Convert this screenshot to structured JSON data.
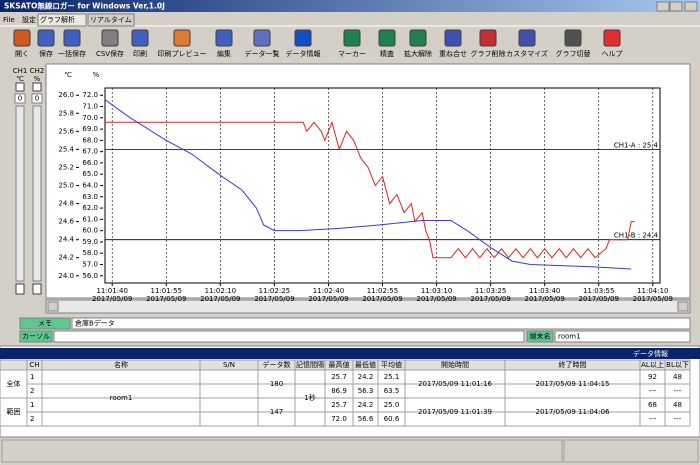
{
  "window": {
    "title": "SKSATO無線ロガー for Windows Ver,1.0J"
  },
  "menu": [
    "File",
    "設定",
    "グラフ解析",
    "リアルタイム"
  ],
  "toolbar": [
    "開く",
    "保存",
    "一括保存",
    "CSV保存",
    "印刷",
    "印刷プレビュー",
    "編集",
    "データ一覧",
    "データ情報",
    "マーカー",
    "精査",
    "拡大解除",
    "重ね合せ",
    "グラフ削除",
    "カスタマイズ",
    "グラフ切替",
    "ヘルプ"
  ],
  "left_panel": {
    "channels": [
      "CH1",
      "CH2"
    ],
    "units": [
      "℃",
      "%"
    ],
    "offsets": [
      "0",
      "0"
    ]
  },
  "chart_data": {
    "type": "line",
    "y_label": "℃",
    "y2_label": "%",
    "xlim": [
      "11:01:38",
      "11:04:12"
    ],
    "xticks": [
      "11:01:40",
      "11:01:55",
      "11:02:10",
      "11:02:25",
      "11:02:40",
      "11:02:55",
      "11:03:10",
      "11:03:25",
      "11:03:40",
      "11:03:55",
      "11:04:10"
    ],
    "xtick_dates": [
      "2017/05/09",
      "2017/05/09",
      "2017/05/09",
      "2017/05/09",
      "2017/05/09",
      "2017/05/09",
      "2017/05/09",
      "2017/05/09",
      "2017/05/09",
      "2017/05/09",
      "2017/05/09"
    ],
    "ylim": [
      23.92,
      26.08
    ],
    "yticks": [
      {
        "value": 24,
        "label": "24.0"
      },
      24.2,
      24.4,
      24.6,
      24.8,
      {
        "value": 25,
        "label": "25.0"
      },
      25.2,
      25.4,
      25.6,
      25.8,
      {
        "value": 26,
        "label": "26.0"
      }
    ],
    "y2lim": [
      55.36,
      72.64
    ],
    "y2ticks": [
      {
        "value": 56,
        "label": "56.0"
      },
      {
        "value": 57,
        "label": "57.0"
      },
      {
        "value": 58,
        "label": "58.0"
      },
      {
        "value": 59,
        "label": "59.0"
      },
      {
        "value": 60,
        "label": "60.0"
      },
      {
        "value": 61,
        "label": "61.0"
      },
      {
        "value": 62,
        "label": "62.0"
      },
      {
        "value": 63,
        "label": "63.0"
      },
      {
        "value": 64,
        "label": "64.0"
      },
      {
        "value": 65,
        "label": "65.0"
      },
      {
        "value": 66,
        "label": "66.0"
      },
      {
        "value": 67,
        "label": "67.0"
      },
      {
        "value": 68,
        "label": "68.0"
      },
      {
        "value": 69,
        "label": "69.0"
      },
      {
        "value": 70,
        "label": "70.0"
      },
      {
        "value": 71,
        "label": "71.0"
      },
      {
        "value": 72,
        "label": "72.0"
      }
    ],
    "grid": "x",
    "ref_lines": [
      {
        "label": "CH1-A : 25.4",
        "value": 25.4
      },
      {
        "label": "CH1-B : 24.4",
        "value": 24.4
      }
    ],
    "series": [
      {
        "color": "#e82020",
        "x": [
          "11:01:38",
          "11:02:33",
          "11:02:34",
          "11:02:36",
          "11:02:38",
          "11:02:39",
          "11:02:41",
          "11:02:43",
          "11:02:45",
          "11:02:47",
          "11:02:49",
          "11:02:51",
          "11:02:53",
          "11:02:55",
          "11:02:57",
          "11:02:59",
          "11:03:01",
          "11:03:03",
          "11:03:04",
          "11:03:06",
          "11:03:07",
          "11:03:08",
          "11:03:09",
          "11:03:14",
          "11:03:16",
          "11:03:18",
          "11:03:20",
          "11:03:22",
          "11:03:24",
          "11:03:26",
          "11:03:28",
          "11:03:30",
          "11:03:32",
          "11:03:34",
          "11:03:36",
          "11:03:38",
          "11:03:40",
          "11:03:42",
          "11:03:44",
          "11:03:46",
          "11:03:48",
          "11:03:50",
          "11:03:52",
          "11:03:54",
          "11:03:57",
          "11:03:58",
          "11:04:03",
          "11:04:04",
          "11:04:05"
        ],
        "values": [
          25.7,
          25.7,
          25.6,
          25.7,
          25.6,
          25.5,
          25.7,
          25.4,
          25.6,
          25.5,
          25.3,
          25.2,
          25.0,
          25.1,
          24.8,
          24.9,
          24.7,
          24.8,
          24.6,
          24.7,
          24.5,
          24.4,
          24.2,
          24.2,
          24.3,
          24.2,
          24.3,
          24.2,
          24.3,
          24.2,
          24.3,
          24.2,
          24.3,
          24.2,
          24.3,
          24.2,
          24.3,
          24.2,
          24.3,
          24.2,
          24.3,
          24.2,
          24.3,
          24.2,
          24.3,
          24.4,
          24.4,
          24.6,
          24.6
        ]
      },
      {
        "color": "#3838e0",
        "axis": "y2",
        "x": [
          "11:01:38",
          "11:01:45",
          "11:01:55",
          "11:02:02",
          "11:02:10",
          "11:02:16",
          "11:02:20",
          "11:02:22",
          "11:02:25",
          "11:02:32",
          "11:02:43",
          "11:02:54",
          "11:03:06",
          "11:03:14",
          "11:03:19",
          "11:03:25",
          "11:03:31",
          "11:03:36",
          "11:03:53",
          "11:04:04"
        ],
        "values": [
          71.6,
          70.0,
          68.0,
          66.8,
          64.9,
          63.6,
          62.0,
          60.5,
          60.0,
          60.0,
          60.2,
          60.5,
          60.9,
          60.9,
          59.9,
          58.5,
          57.3,
          57.0,
          56.8,
          56.6
        ]
      }
    ]
  },
  "memo": {
    "label": "メモ",
    "text": "倉庫Bデータ"
  },
  "cursor": {
    "label": "カーソル"
  },
  "terminal": {
    "label": "端末名",
    "value": "room1"
  },
  "table": {
    "title": "データ情報",
    "columns": [
      "CH",
      "名称",
      "S/N",
      "データ数",
      "記憶間隔",
      "最高値",
      "最低値",
      "平均値",
      "開始時間",
      "終了時間",
      "AL以上",
      "BL以下"
    ],
    "name": "room1",
    "interval": "1秒",
    "groups": [
      {
        "label": "全体",
        "count": "180",
        "rows": [
          {
            "ch": "1",
            "max": "25.7",
            "min": "24.2",
            "avg": "25.1",
            "start": "2017/05/09 11:01:16",
            "end": "2017/05/09 11:04:15",
            "al": "92",
            "bl": "48"
          },
          {
            "ch": "2",
            "max": "86.9",
            "min": "56.3",
            "avg": "63.5",
            "start": "",
            "end": "",
            "al": "---",
            "bl": "---"
          }
        ]
      },
      {
        "label": "範囲",
        "count": "147",
        "rows": [
          {
            "ch": "1",
            "max": "25.7",
            "min": "24.2",
            "avg": "25.0",
            "start": "2017/05/09 11:01:39",
            "end": "2017/05/09 11:04:06",
            "al": "68",
            "bl": "48"
          },
          {
            "ch": "2",
            "max": "72.0",
            "min": "56.6",
            "avg": "60.6",
            "start": "",
            "end": "",
            "al": "---",
            "bl": "---"
          }
        ]
      }
    ]
  }
}
